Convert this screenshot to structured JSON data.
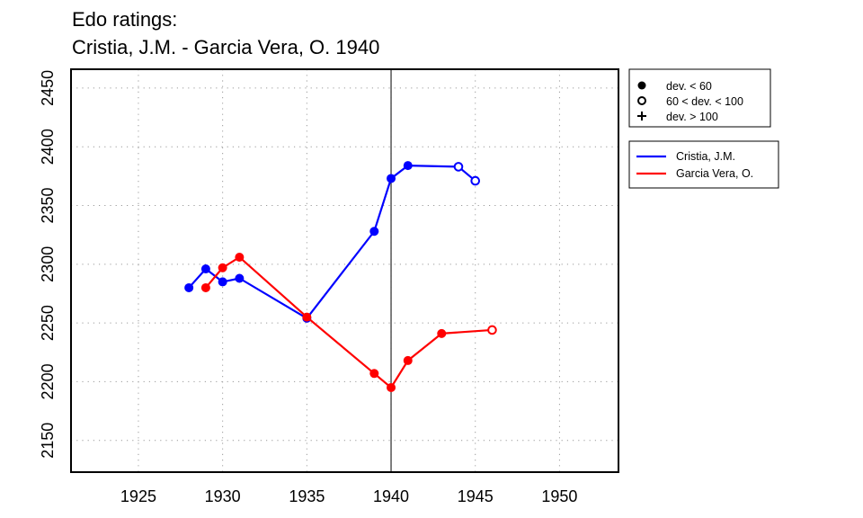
{
  "chart_data": {
    "type": "line",
    "title": "Edo ratings:",
    "subtitle": "Cristia, J.M. - Garcia Vera, O. 1940",
    "xlabel": "",
    "ylabel": "",
    "xlim": [
      1921,
      1953.5
    ],
    "ylim": [
      2123,
      2466
    ],
    "x_ticks": [
      1925,
      1930,
      1935,
      1940,
      1945,
      1950
    ],
    "y_ticks": [
      2150,
      2200,
      2250,
      2300,
      2350,
      2400,
      2450
    ],
    "grid": true,
    "reference_line_x": 1940,
    "series": [
      {
        "name": "Cristia, J.M.",
        "color": "#0000ff",
        "points": [
          {
            "x": 1928,
            "y": 2280,
            "dev": "low"
          },
          {
            "x": 1929,
            "y": 2296,
            "dev": "low"
          },
          {
            "x": 1930,
            "y": 2285,
            "dev": "low"
          },
          {
            "x": 1931,
            "y": 2288,
            "dev": "low"
          },
          {
            "x": 1935,
            "y": 2254,
            "dev": "low"
          },
          {
            "x": 1939,
            "y": 2328,
            "dev": "low"
          },
          {
            "x": 1940,
            "y": 2373,
            "dev": "low"
          },
          {
            "x": 1941,
            "y": 2384,
            "dev": "low"
          },
          {
            "x": 1944,
            "y": 2383,
            "dev": "mid"
          },
          {
            "x": 1945,
            "y": 2371,
            "dev": "mid"
          }
        ]
      },
      {
        "name": "Garcia Vera, O.",
        "color": "#ff0000",
        "points": [
          {
            "x": 1929,
            "y": 2280,
            "dev": "low"
          },
          {
            "x": 1930,
            "y": 2297,
            "dev": "low"
          },
          {
            "x": 1931,
            "y": 2306,
            "dev": "low"
          },
          {
            "x": 1935,
            "y": 2255,
            "dev": "low"
          },
          {
            "x": 1939,
            "y": 2207,
            "dev": "low"
          },
          {
            "x": 1940,
            "y": 2195,
            "dev": "low"
          },
          {
            "x": 1941,
            "y": 2218,
            "dev": "low"
          },
          {
            "x": 1943,
            "y": 2241,
            "dev": "low"
          },
          {
            "x": 1946,
            "y": 2244,
            "dev": "mid"
          }
        ]
      }
    ],
    "legend_markers": [
      {
        "label": "dev. < 60",
        "symbol": "filled-circle"
      },
      {
        "label": "60 < dev. < 100",
        "symbol": "open-circle"
      },
      {
        "label": "dev. > 100",
        "symbol": "plus"
      }
    ],
    "legend_placement": "right"
  }
}
